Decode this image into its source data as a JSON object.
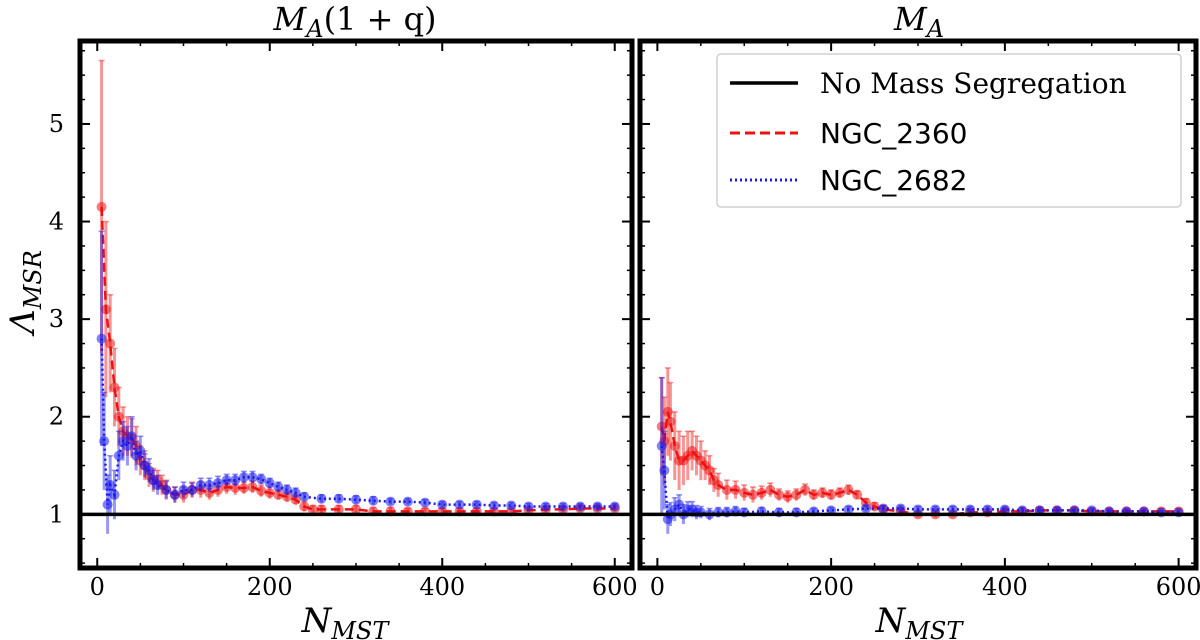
{
  "chart_data": [
    {
      "type": "line",
      "title_main": "M",
      "title_sub": "A",
      "title_suffix": "(1 + q)",
      "xlabel_main": "N",
      "xlabel_sub": "MST",
      "ylabel_main": "Λ",
      "ylabel_sub": "MSR",
      "xlim": [
        -20,
        620
      ],
      "ylim": [
        0.45,
        5.85
      ],
      "xticks": [
        0,
        200,
        400,
        600
      ],
      "yticks": [
        1,
        2,
        3,
        4,
        5
      ],
      "reference_line": {
        "name": "No Mass Segregation",
        "y": 1.0
      },
      "series": [
        {
          "name": "NGC_2360",
          "x": [
            5,
            10,
            15,
            20,
            25,
            30,
            35,
            40,
            45,
            50,
            55,
            60,
            65,
            70,
            75,
            80,
            90,
            100,
            110,
            120,
            130,
            140,
            150,
            160,
            170,
            180,
            190,
            200,
            210,
            220,
            230,
            240,
            250,
            260,
            280,
            300,
            320,
            340,
            360,
            380,
            400,
            420,
            440,
            460,
            480,
            500,
            520,
            540,
            560,
            580,
            600
          ],
          "y": [
            4.15,
            3.1,
            2.75,
            2.3,
            2.0,
            1.85,
            1.8,
            1.78,
            1.7,
            1.55,
            1.5,
            1.4,
            1.35,
            1.35,
            1.3,
            1.25,
            1.2,
            1.2,
            1.25,
            1.25,
            1.22,
            1.25,
            1.28,
            1.27,
            1.27,
            1.28,
            1.24,
            1.22,
            1.2,
            1.18,
            1.15,
            1.08,
            1.05,
            1.05,
            1.05,
            1.05,
            1.03,
            1.03,
            1.03,
            1.03,
            1.03,
            1.03,
            1.03,
            1.03,
            1.03,
            1.04,
            1.05,
            1.05,
            1.06,
            1.06,
            1.06
          ],
          "err": [
            1.5,
            0.9,
            0.5,
            0.4,
            0.3,
            0.25,
            0.2,
            0.2,
            0.2,
            0.15,
            0.15,
            0.12,
            0.12,
            0.1,
            0.1,
            0.1,
            0.08,
            0.08,
            0.08,
            0.08,
            0.07,
            0.07,
            0.07,
            0.07,
            0.06,
            0.06,
            0.06,
            0.06,
            0.05,
            0.05,
            0.05,
            0.05,
            0.04,
            0.04,
            0.04,
            0.04,
            0.04,
            0.04,
            0.03,
            0.03,
            0.03,
            0.03,
            0.03,
            0.03,
            0.03,
            0.03,
            0.03,
            0.03,
            0.03,
            0.03,
            0.03
          ]
        },
        {
          "name": "NGC_2682",
          "x": [
            5,
            8,
            12,
            15,
            20,
            25,
            30,
            35,
            40,
            45,
            50,
            55,
            60,
            65,
            70,
            80,
            90,
            100,
            110,
            120,
            130,
            140,
            150,
            160,
            170,
            180,
            190,
            200,
            210,
            220,
            230,
            240,
            260,
            280,
            300,
            320,
            340,
            360,
            380,
            400,
            420,
            440,
            460,
            480,
            500,
            520,
            540,
            560,
            580,
            600
          ],
          "y": [
            2.8,
            1.75,
            1.1,
            1.3,
            1.2,
            1.6,
            1.75,
            1.7,
            1.8,
            1.6,
            1.65,
            1.5,
            1.45,
            1.35,
            1.3,
            1.25,
            1.2,
            1.25,
            1.25,
            1.3,
            1.3,
            1.32,
            1.35,
            1.35,
            1.38,
            1.38,
            1.36,
            1.32,
            1.28,
            1.25,
            1.22,
            1.18,
            1.16,
            1.16,
            1.15,
            1.14,
            1.13,
            1.13,
            1.12,
            1.1,
            1.1,
            1.1,
            1.09,
            1.09,
            1.08,
            1.08,
            1.08,
            1.08,
            1.08,
            1.08
          ],
          "err": [
            1.1,
            0.5,
            0.3,
            0.3,
            0.25,
            0.25,
            0.2,
            0.2,
            0.2,
            0.15,
            0.15,
            0.12,
            0.12,
            0.1,
            0.1,
            0.09,
            0.08,
            0.08,
            0.07,
            0.07,
            0.07,
            0.07,
            0.06,
            0.06,
            0.06,
            0.06,
            0.05,
            0.05,
            0.05,
            0.05,
            0.05,
            0.04,
            0.04,
            0.04,
            0.04,
            0.04,
            0.03,
            0.03,
            0.03,
            0.03,
            0.03,
            0.03,
            0.03,
            0.03,
            0.03,
            0.03,
            0.03,
            0.03,
            0.03,
            0.03
          ]
        }
      ]
    },
    {
      "type": "line",
      "title_main": "M",
      "title_sub": "A",
      "title_suffix": "",
      "xlabel_main": "N",
      "xlabel_sub": "MST",
      "xlim": [
        -20,
        620
      ],
      "ylim": [
        0.45,
        5.85
      ],
      "xticks": [
        0,
        200,
        400,
        600
      ],
      "reference_line": {
        "name": "No Mass Segregation",
        "y": 1.0
      },
      "series": [
        {
          "name": "NGC_2360",
          "x": [
            5,
            8,
            12,
            15,
            20,
            25,
            30,
            35,
            40,
            45,
            50,
            55,
            60,
            65,
            70,
            80,
            90,
            100,
            110,
            120,
            130,
            140,
            150,
            160,
            170,
            180,
            190,
            200,
            210,
            220,
            230,
            240,
            250,
            260,
            280,
            300,
            320,
            340,
            360,
            380,
            400,
            420,
            440,
            460,
            480,
            500,
            520,
            540,
            560,
            580,
            600
          ],
          "y": [
            1.9,
            1.75,
            2.05,
            1.95,
            1.7,
            1.55,
            1.55,
            1.6,
            1.65,
            1.6,
            1.55,
            1.5,
            1.45,
            1.35,
            1.3,
            1.25,
            1.25,
            1.22,
            1.2,
            1.22,
            1.25,
            1.2,
            1.18,
            1.2,
            1.25,
            1.2,
            1.22,
            1.2,
            1.22,
            1.25,
            1.2,
            1.12,
            1.08,
            1.05,
            1.03,
            1.0,
            1.0,
            1.0,
            1.02,
            1.02,
            1.03,
            1.03,
            1.04,
            1.04,
            1.04,
            1.03,
            1.03,
            1.03,
            1.03,
            1.03,
            1.03
          ],
          "err": [
            0.5,
            0.45,
            0.45,
            0.4,
            0.35,
            0.3,
            0.25,
            0.25,
            0.2,
            0.2,
            0.2,
            0.15,
            0.15,
            0.12,
            0.12,
            0.1,
            0.09,
            0.08,
            0.08,
            0.07,
            0.07,
            0.06,
            0.06,
            0.06,
            0.06,
            0.05,
            0.05,
            0.05,
            0.05,
            0.05,
            0.04,
            0.04,
            0.04,
            0.04,
            0.04,
            0.03,
            0.03,
            0.03,
            0.03,
            0.03,
            0.03,
            0.03,
            0.03,
            0.03,
            0.03,
            0.03,
            0.03,
            0.03,
            0.03,
            0.03,
            0.03
          ]
        },
        {
          "name": "NGC_2682",
          "x": [
            5,
            8,
            12,
            15,
            20,
            25,
            30,
            35,
            40,
            45,
            50,
            60,
            70,
            80,
            90,
            100,
            120,
            140,
            160,
            180,
            200,
            220,
            240,
            260,
            280,
            300,
            320,
            340,
            360,
            380,
            400,
            420,
            440,
            460,
            480,
            500,
            520,
            540,
            560,
            580,
            600
          ],
          "y": [
            1.7,
            1.45,
            0.95,
            1.0,
            1.05,
            1.1,
            1.0,
            1.05,
            1.05,
            1.02,
            1.02,
            1.0,
            1.02,
            1.02,
            1.03,
            1.02,
            1.03,
            1.02,
            1.02,
            1.03,
            1.04,
            1.05,
            1.06,
            1.06,
            1.06,
            1.05,
            1.05,
            1.05,
            1.05,
            1.05,
            1.05,
            1.04,
            1.04,
            1.04,
            1.04,
            1.04,
            1.03,
            1.03,
            1.03,
            1.02,
            1.02
          ],
          "err": [
            0.7,
            0.4,
            0.15,
            0.12,
            0.12,
            0.1,
            0.1,
            0.08,
            0.08,
            0.07,
            0.06,
            0.06,
            0.05,
            0.05,
            0.05,
            0.04,
            0.04,
            0.04,
            0.04,
            0.03,
            0.03,
            0.03,
            0.03,
            0.03,
            0.03,
            0.03,
            0.03,
            0.03,
            0.03,
            0.03,
            0.03,
            0.03,
            0.03,
            0.03,
            0.02,
            0.02,
            0.02,
            0.02,
            0.02,
            0.02,
            0.02
          ]
        }
      ]
    }
  ],
  "legend": {
    "placement": "top-right",
    "entries": [
      "No Mass Segregation",
      "NGC_2360",
      "NGC_2682"
    ]
  },
  "colors": {
    "NGC_2360": "#ee1111",
    "NGC_2682": "#1a1aee",
    "reference": "#000000"
  }
}
